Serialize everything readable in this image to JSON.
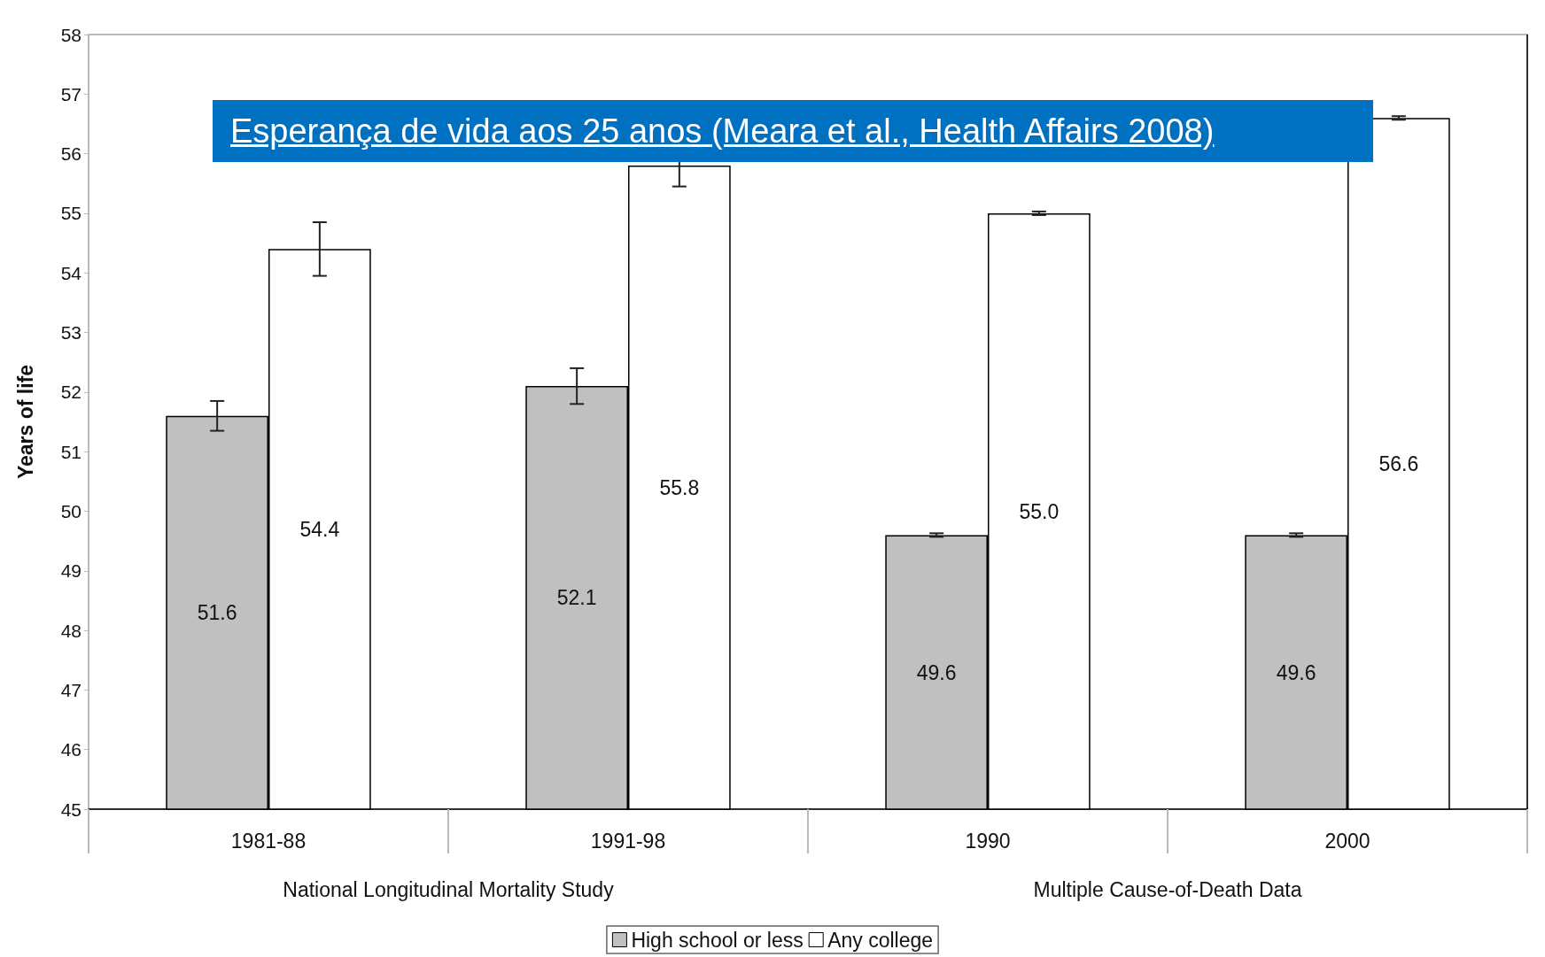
{
  "chart_data": {
    "type": "bar",
    "title": "Esperança de vida aos 25 anos (Meara et al., Health Affairs 2008)",
    "ylabel": "Years of life",
    "categories": [
      "1981-88",
      "1991-98",
      "1990",
      "2000"
    ],
    "series": [
      {
        "name": "High school or less",
        "color": "#c0c0c0",
        "values": [
          51.6,
          52.1,
          49.6,
          49.6
        ],
        "errors": [
          0.25,
          0.3,
          0.03,
          0.03
        ],
        "value_labels": [
          "51.6",
          "52.1",
          "49.6",
          "49.6"
        ]
      },
      {
        "name": "Any college",
        "color": "#ffffff",
        "values": [
          54.4,
          55.8,
          55.0,
          56.6
        ],
        "errors": [
          0.45,
          0.35,
          0.03,
          0.03
        ],
        "value_labels": [
          "54.4",
          "55.8",
          "55.0",
          "56.6"
        ]
      }
    ],
    "annotations": [
      "National Longitudinal Mortality Study",
      "Multiple Cause-of-Death Data"
    ],
    "ylim": [
      45,
      58
    ],
    "yticks": [
      45,
      46,
      47,
      48,
      49,
      50,
      51,
      52,
      53,
      54,
      55,
      56,
      57,
      58
    ],
    "grid": false,
    "legend": "bottom"
  }
}
